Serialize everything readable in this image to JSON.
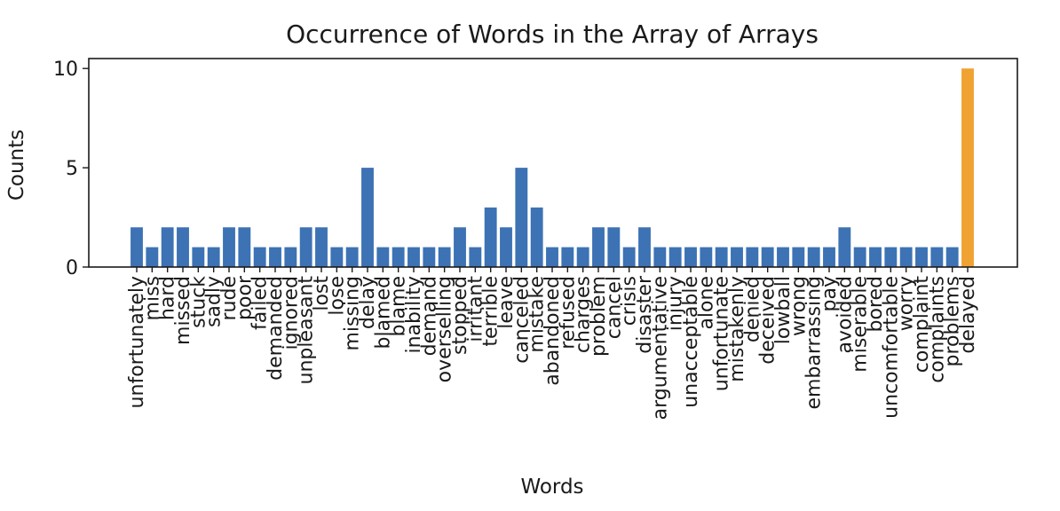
{
  "chart_data": {
    "type": "bar",
    "title": "Occurrence of Words in the Array of Arrays",
    "xlabel": "Words",
    "ylabel": "Counts",
    "ylim": [
      0,
      10.5
    ],
    "yticks": [
      0,
      5,
      10
    ],
    "grid": false,
    "colors": {
      "default": "#3d72b4",
      "highlight": "#f0a232"
    },
    "highlight_category": "delayed",
    "categories": [
      "unfortunately",
      "miss",
      "hard",
      "missed",
      "stuck",
      "sadly",
      "rude",
      "poor",
      "failed",
      "demanded",
      "ignored",
      "unpleasant",
      "lost",
      "lose",
      "missing",
      "delay",
      "blamed",
      "blame",
      "inability",
      "demand",
      "overselling",
      "stopped",
      "irritant",
      "terrible",
      "leave",
      "canceled",
      "mistake",
      "abandoned",
      "refused",
      "charges",
      "problem",
      "cancel",
      "crisis",
      "disaster",
      "argumentative",
      "injury",
      "unacceptable",
      "alone",
      "unfortunate",
      "mistakenly",
      "denied",
      "deceived",
      "lowball",
      "wrong",
      "embarrassing",
      "pay",
      "avoided",
      "miserable",
      "bored",
      "uncomfortable",
      "worry",
      "complaint",
      "complaints",
      "problems",
      "delayed"
    ],
    "values": [
      2,
      1,
      2,
      2,
      1,
      1,
      2,
      2,
      1,
      1,
      1,
      2,
      2,
      1,
      1,
      5,
      1,
      1,
      1,
      1,
      1,
      2,
      1,
      3,
      2,
      5,
      3,
      1,
      1,
      1,
      2,
      2,
      1,
      2,
      1,
      1,
      1,
      1,
      1,
      1,
      1,
      1,
      1,
      1,
      1,
      1,
      2,
      1,
      1,
      1,
      1,
      1,
      1,
      1,
      10
    ]
  }
}
